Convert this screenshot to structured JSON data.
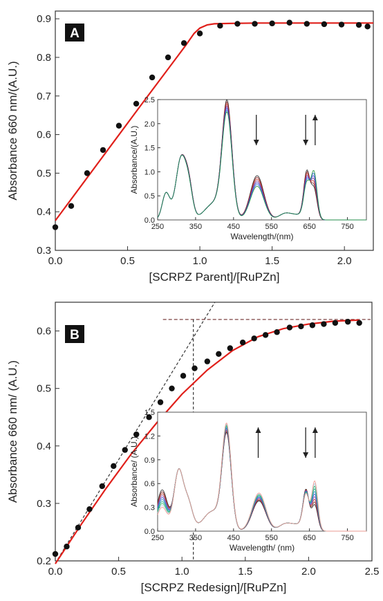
{
  "chart_data": [
    {
      "panel": "A",
      "type": "scatter",
      "xlabel": "[SCRPZ Parent]/[RuPZn]",
      "ylabel": "Absorbance 660 nm/(A.U.)",
      "xlim": [
        0,
        2.2
      ],
      "ylim": [
        0.3,
        0.92
      ],
      "xticks": [
        "0.0",
        "0.5",
        "1.0",
        "1.5",
        "2.0"
      ],
      "yticks": [
        "0.3",
        "0.4",
        "0.5",
        "0.6",
        "0.7",
        "0.8",
        "0.9"
      ],
      "points": {
        "x": [
          0.0,
          0.11,
          0.22,
          0.33,
          0.44,
          0.56,
          0.67,
          0.78,
          0.89,
          1.0,
          1.14,
          1.26,
          1.38,
          1.5,
          1.62,
          1.74,
          1.86,
          1.98,
          2.1,
          2.16
        ],
        "y": [
          0.36,
          0.415,
          0.5,
          0.56,
          0.623,
          0.68,
          0.748,
          0.8,
          0.837,
          0.862,
          0.882,
          0.887,
          0.887,
          0.888,
          0.89,
          0.887,
          0.886,
          0.885,
          0.884,
          0.88
        ],
        "color": "#111111"
      },
      "fit": {
        "x": [
          0.0,
          0.2,
          0.4,
          0.6,
          0.8,
          0.9,
          0.96,
          1.0,
          1.05,
          1.1,
          1.2,
          1.4,
          1.8,
          2.2
        ],
        "y": [
          0.377,
          0.478,
          0.579,
          0.68,
          0.78,
          0.83,
          0.862,
          0.876,
          0.884,
          0.887,
          0.888,
          0.889,
          0.889,
          0.889
        ],
        "color": "#e0201b"
      },
      "inset": {
        "xlabel": "Wavelength/(nm)",
        "ylabel": "Absorbance/(A.U.)",
        "xlim": [
          250,
          800
        ],
        "ylim": [
          0,
          2.5
        ],
        "xticks": [
          "250",
          "350",
          "450",
          "550",
          "650",
          "750"
        ],
        "yticks": [
          "0.0",
          "0.5",
          "1.0",
          "1.5",
          "2.0",
          "2.5"
        ],
        "arrows": [
          {
            "x": 510,
            "direction": "down"
          },
          {
            "x": 640,
            "direction": "down"
          },
          {
            "x": 665,
            "direction": "up"
          }
        ],
        "series_colors": [
          "#222222",
          "#8b1a1a",
          "#c0392b",
          "#7b2d8b",
          "#3b3bcc",
          "#2f6fd6",
          "#1f8f3a"
        ]
      }
    },
    {
      "panel": "B",
      "type": "scatter",
      "xlabel": "[SCRPZ Redesign]/[RuPZn]",
      "ylabel": "Absorbance 660 nm/ (A.U.)",
      "xlim": [
        0,
        2.5
      ],
      "ylim": [
        0.2,
        0.65
      ],
      "xticks": [
        "0.0",
        "0.5",
        "1.0",
        "1.5",
        "2.0",
        "2.5"
      ],
      "yticks": [
        "0.2",
        "0.3",
        "0.4",
        "0.5",
        "0.6"
      ],
      "points": {
        "x": [
          0.0,
          0.09,
          0.18,
          0.27,
          0.37,
          0.46,
          0.55,
          0.64,
          0.74,
          0.83,
          0.92,
          1.01,
          1.1,
          1.2,
          1.29,
          1.38,
          1.48,
          1.57,
          1.66,
          1.75,
          1.85,
          1.94,
          2.03,
          2.12,
          2.21,
          2.31,
          2.4
        ],
        "y": [
          0.212,
          0.225,
          0.258,
          0.29,
          0.33,
          0.365,
          0.393,
          0.42,
          0.45,
          0.476,
          0.5,
          0.522,
          0.535,
          0.547,
          0.56,
          0.57,
          0.58,
          0.587,
          0.593,
          0.598,
          0.606,
          0.608,
          0.61,
          0.612,
          0.614,
          0.616,
          0.614
        ],
        "color": "#111111"
      },
      "fit": {
        "x": [
          0.0,
          0.2,
          0.4,
          0.6,
          0.8,
          1.0,
          1.2,
          1.4,
          1.6,
          1.8,
          2.0,
          2.2,
          2.4
        ],
        "y": [
          0.195,
          0.262,
          0.326,
          0.386,
          0.44,
          0.49,
          0.532,
          0.566,
          0.59,
          0.604,
          0.612,
          0.617,
          0.619
        ],
        "color": "#e0201b"
      },
      "guides": {
        "tangent": {
          "x": [
            0.0,
            1.26
          ],
          "y": [
            0.196,
            0.65
          ]
        },
        "plateau_y": 0.62,
        "plateau_x_start": 0.85,
        "intersection_x": 1.09
      },
      "inset": {
        "xlabel": "Wavelength/ (nm)",
        "ylabel": "Absorbance/ (A.U.)",
        "xlim": [
          250,
          800
        ],
        "ylim": [
          0,
          1.5
        ],
        "xticks": [
          "250",
          "350",
          "450",
          "550",
          "650",
          "750"
        ],
        "yticks": [
          "0.0",
          "0.3",
          "0.6",
          "0.9",
          "1.2",
          "1.5"
        ],
        "arrows": [
          {
            "x": 515,
            "direction": "up"
          },
          {
            "x": 640,
            "direction": "down"
          },
          {
            "x": 665,
            "direction": "up"
          }
        ],
        "series_colors": [
          "#222222",
          "#7a1f1f",
          "#b03a2e",
          "#8e44ad",
          "#3355cc",
          "#2e86c1",
          "#17a589",
          "#28b463",
          "#a9cce3",
          "#f1948a"
        ]
      }
    }
  ],
  "panel_labels": [
    "A",
    "B"
  ]
}
